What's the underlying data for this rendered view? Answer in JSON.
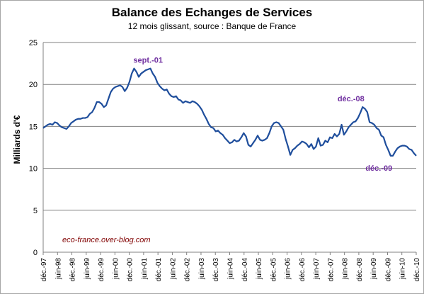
{
  "chart_data": {
    "type": "line",
    "title": "Balance des Echanges de Services",
    "subtitle": "12 mois glissant, source : Banque de France",
    "ylabel": "Milliards d'€",
    "xlabel": "",
    "ylim": [
      0,
      25
    ],
    "yticks": [
      0,
      5,
      10,
      15,
      20,
      25
    ],
    "grid": true,
    "legend": "none",
    "line_color": "#1f4e9c",
    "annotation_color": "#7030a0",
    "x_tick_labels": [
      "déc.-97",
      "juin-98",
      "déc.-98",
      "juin-99",
      "déc.-99",
      "juin-00",
      "déc.-00",
      "juin-01",
      "déc.-01",
      "juin-02",
      "déc.-02",
      "juin-03",
      "déc.-03",
      "juin-04",
      "déc.-04",
      "juin-05",
      "déc.-05",
      "juin-06",
      "déc.-06",
      "juin-07",
      "déc.-07",
      "juin-08",
      "déc.-08",
      "juin-09",
      "déc.-09",
      "juin-10",
      "déc.-10"
    ],
    "series": [
      {
        "values": [
          14.8,
          15.0,
          15.2,
          15.3,
          15.2,
          15.5,
          15.4,
          15.1,
          14.9,
          14.8,
          14.7,
          15.0,
          15.4,
          15.6,
          15.8,
          15.9,
          15.9,
          16.0,
          16.0,
          16.1,
          16.5,
          16.7,
          17.2,
          17.9,
          17.9,
          17.7,
          17.3,
          17.5,
          18.3,
          19.1,
          19.5,
          19.7,
          19.8,
          19.9,
          19.7,
          19.2,
          19.6,
          20.3,
          21.3,
          21.9,
          21.5,
          20.9,
          21.3,
          21.5,
          21.7,
          21.8,
          21.9,
          21.3,
          20.9,
          20.2,
          19.8,
          19.5,
          19.3,
          19.4,
          18.9,
          18.6,
          18.5,
          18.6,
          18.2,
          18.1,
          17.8,
          18.0,
          17.9,
          17.8,
          18.0,
          17.9,
          17.7,
          17.4,
          17.0,
          16.4,
          15.9,
          15.3,
          14.9,
          14.8,
          14.4,
          14.5,
          14.2,
          14.0,
          13.6,
          13.3,
          13.0,
          13.1,
          13.4,
          13.2,
          13.3,
          13.7,
          14.2,
          13.8,
          12.8,
          12.6,
          13.0,
          13.4,
          13.9,
          13.4,
          13.3,
          13.4,
          13.6,
          14.2,
          15.0,
          15.4,
          15.5,
          15.4,
          15.0,
          14.6,
          13.5,
          12.6,
          11.6,
          12.2,
          12.4,
          12.7,
          12.9,
          13.2,
          13.1,
          12.9,
          12.5,
          12.9,
          12.3,
          12.6,
          13.6,
          12.7,
          12.8,
          13.3,
          13.1,
          13.7,
          13.6,
          14.1,
          13.8,
          14.1,
          15.2,
          14.0,
          14.4,
          14.9,
          15.2,
          15.5,
          15.6,
          16.0,
          16.6,
          17.3,
          17.1,
          16.7,
          15.5,
          15.4,
          15.2,
          14.8,
          14.6,
          13.9,
          13.7,
          12.8,
          12.2,
          11.5,
          11.5,
          12.0,
          12.4,
          12.6,
          12.7,
          12.7,
          12.6,
          12.3,
          12.2,
          11.8,
          11.5
        ]
      }
    ],
    "annotations": [
      {
        "label": "sept.-01",
        "date": "sept.-01",
        "value": 21.9
      },
      {
        "label": "déc.-08",
        "date": "déc.-08",
        "value": 17.3
      },
      {
        "label": "déc.-09",
        "date": "déc.-09",
        "value": 11.5
      }
    ]
  },
  "watermark": "eco-france.over-blog.com"
}
